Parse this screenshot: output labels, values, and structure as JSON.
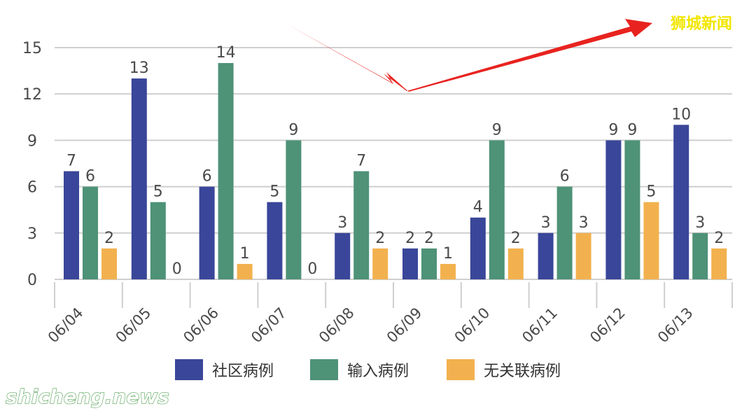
{
  "watermarks": {
    "brand_cn": "狮城新闻",
    "site": "shicheng.news"
  },
  "colors": {
    "community": "#3a4699",
    "imported": "#4e9278",
    "unlinked": "#f2b14e",
    "arrow": "#e8231f",
    "grid": "#cfcfcf"
  },
  "chart_data": {
    "type": "bar",
    "categories": [
      "06/04",
      "06/05",
      "06/06",
      "06/07",
      "06/08",
      "06/09",
      "06/10",
      "06/11",
      "06/12",
      "06/13"
    ],
    "series": [
      {
        "name": "社区病例",
        "values": [
          7,
          13,
          6,
          5,
          3,
          2,
          4,
          3,
          9,
          10
        ]
      },
      {
        "name": "输入病例",
        "values": [
          6,
          5,
          14,
          9,
          7,
          2,
          9,
          6,
          9,
          3
        ]
      },
      {
        "name": "无关联病例",
        "values": [
          2,
          0,
          1,
          0,
          2,
          1,
          2,
          3,
          5,
          2
        ]
      }
    ],
    "y_ticks": [
      0,
      3,
      6,
      9,
      12,
      15
    ],
    "ylim": [
      0,
      15.5
    ],
    "grid": true,
    "legend_position": "bottom",
    "x_label_rotation": "-45deg"
  }
}
